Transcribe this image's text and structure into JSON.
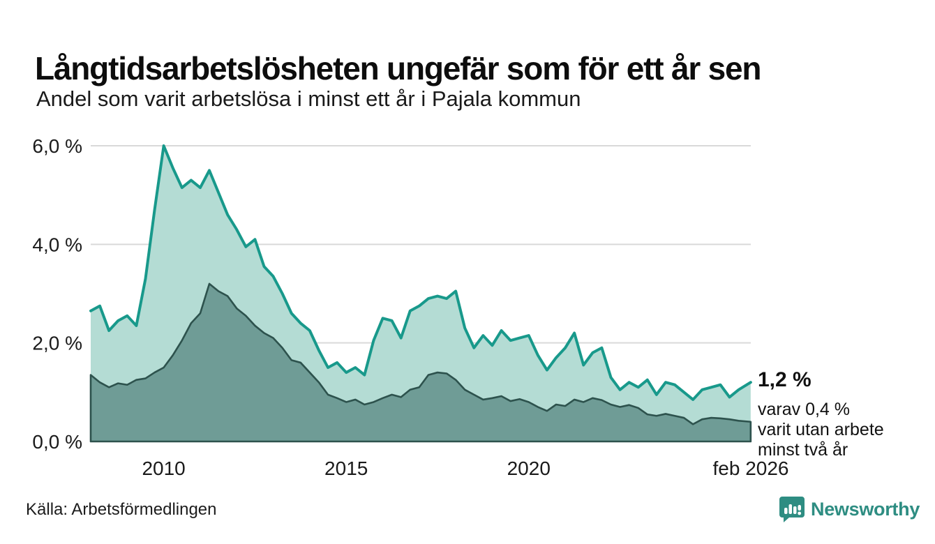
{
  "header": {
    "title": "Långtidsarbetslösheten ungefär som för ett år sen",
    "subtitle": "Andel som varit arbetslösa i minst ett år i Pajala kommun"
  },
  "annotation": {
    "value": "1,2 %",
    "line1": "varav 0,4 %",
    "line2": "varit utan arbete",
    "line3": "minst två år"
  },
  "footer": {
    "source": "Källa: Arbetsförmedlingen",
    "logo_text": "Newsworthy"
  },
  "colors": {
    "line_total": "#18998b",
    "fill_total": "#b4dcd4",
    "line_two_years": "#2d524d",
    "fill_two_years": "#6f9c96",
    "gridline": "#d9d9d9",
    "text": "#1a1a1a",
    "logo_teal": "#2e8d82"
  },
  "chart_data": {
    "type": "area",
    "title": "Långtidsarbetslösheten ungefär som för ett år sen",
    "subtitle": "Andel som varit arbetslösa i minst ett år i Pajala kommun",
    "x_range": [
      2008,
      2026.083
    ],
    "y_range": [
      0,
      6
    ],
    "grid": "horizontal",
    "legend_position": "none",
    "x_ticks": [
      {
        "value": 2010,
        "label": "2010"
      },
      {
        "value": 2015,
        "label": "2015"
      },
      {
        "value": 2020,
        "label": "2020"
      },
      {
        "value": 2026.083,
        "label": "feb 2026"
      }
    ],
    "y_ticks": [
      {
        "value": 0,
        "label": "0,0 %"
      },
      {
        "value": 2,
        "label": "2,0 %"
      },
      {
        "value": 4,
        "label": "4,0 %"
      },
      {
        "value": 6,
        "label": "6,0 %"
      }
    ],
    "x": [
      2008,
      2008.25,
      2008.5,
      2008.75,
      2009,
      2009.25,
      2009.5,
      2009.75,
      2010,
      2010.25,
      2010.5,
      2010.75,
      2011,
      2011.25,
      2011.5,
      2011.75,
      2012,
      2012.25,
      2012.5,
      2012.75,
      2013,
      2013.25,
      2013.5,
      2013.75,
      2014,
      2014.25,
      2014.5,
      2014.75,
      2015,
      2015.25,
      2015.5,
      2015.75,
      2016,
      2016.25,
      2016.5,
      2016.75,
      2017,
      2017.25,
      2017.5,
      2017.75,
      2018,
      2018.25,
      2018.5,
      2018.75,
      2019,
      2019.25,
      2019.5,
      2019.75,
      2020,
      2020.25,
      2020.5,
      2020.75,
      2021,
      2021.25,
      2021.5,
      2021.75,
      2022,
      2022.25,
      2022.5,
      2022.75,
      2023,
      2023.25,
      2023.5,
      2023.75,
      2024,
      2024.25,
      2024.5,
      2024.75,
      2025,
      2025.25,
      2025.5,
      2025.75,
      2026.08
    ],
    "series": [
      {
        "name": "Andel arbetslösa minst ett år",
        "last_value": "1,2 %",
        "values": [
          2.65,
          2.75,
          2.25,
          2.45,
          2.55,
          2.35,
          3.3,
          4.7,
          6.0,
          5.55,
          5.15,
          5.3,
          5.15,
          5.5,
          5.05,
          4.6,
          4.3,
          3.95,
          4.1,
          3.55,
          3.35,
          3.0,
          2.6,
          2.4,
          2.25,
          1.85,
          1.5,
          1.6,
          1.4,
          1.5,
          1.35,
          2.05,
          2.5,
          2.45,
          2.1,
          2.65,
          2.75,
          2.9,
          2.95,
          2.9,
          3.05,
          2.3,
          1.9,
          2.15,
          1.95,
          2.25,
          2.05,
          2.1,
          2.15,
          1.75,
          1.45,
          1.7,
          1.9,
          2.2,
          1.55,
          1.8,
          1.9,
          1.3,
          1.05,
          1.2,
          1.1,
          1.25,
          0.95,
          1.2,
          1.15,
          1.0,
          0.85,
          1.05,
          1.1,
          1.15,
          0.9,
          1.05,
          1.2
        ]
      },
      {
        "name": "Varav utan arbete minst två år",
        "last_value": "0,4 %",
        "values": [
          1.35,
          1.2,
          1.1,
          1.18,
          1.15,
          1.25,
          1.28,
          1.4,
          1.5,
          1.75,
          2.05,
          2.4,
          2.6,
          3.2,
          3.05,
          2.95,
          2.7,
          2.55,
          2.35,
          2.2,
          2.1,
          1.9,
          1.65,
          1.6,
          1.4,
          1.2,
          0.95,
          0.88,
          0.8,
          0.85,
          0.75,
          0.8,
          0.88,
          0.95,
          0.9,
          1.05,
          1.1,
          1.35,
          1.4,
          1.38,
          1.25,
          1.05,
          0.95,
          0.85,
          0.88,
          0.92,
          0.82,
          0.86,
          0.8,
          0.7,
          0.62,
          0.75,
          0.72,
          0.85,
          0.8,
          0.88,
          0.84,
          0.75,
          0.7,
          0.74,
          0.68,
          0.55,
          0.52,
          0.56,
          0.52,
          0.48,
          0.35,
          0.45,
          0.48,
          0.47,
          0.45,
          0.42,
          0.4
        ]
      }
    ]
  }
}
